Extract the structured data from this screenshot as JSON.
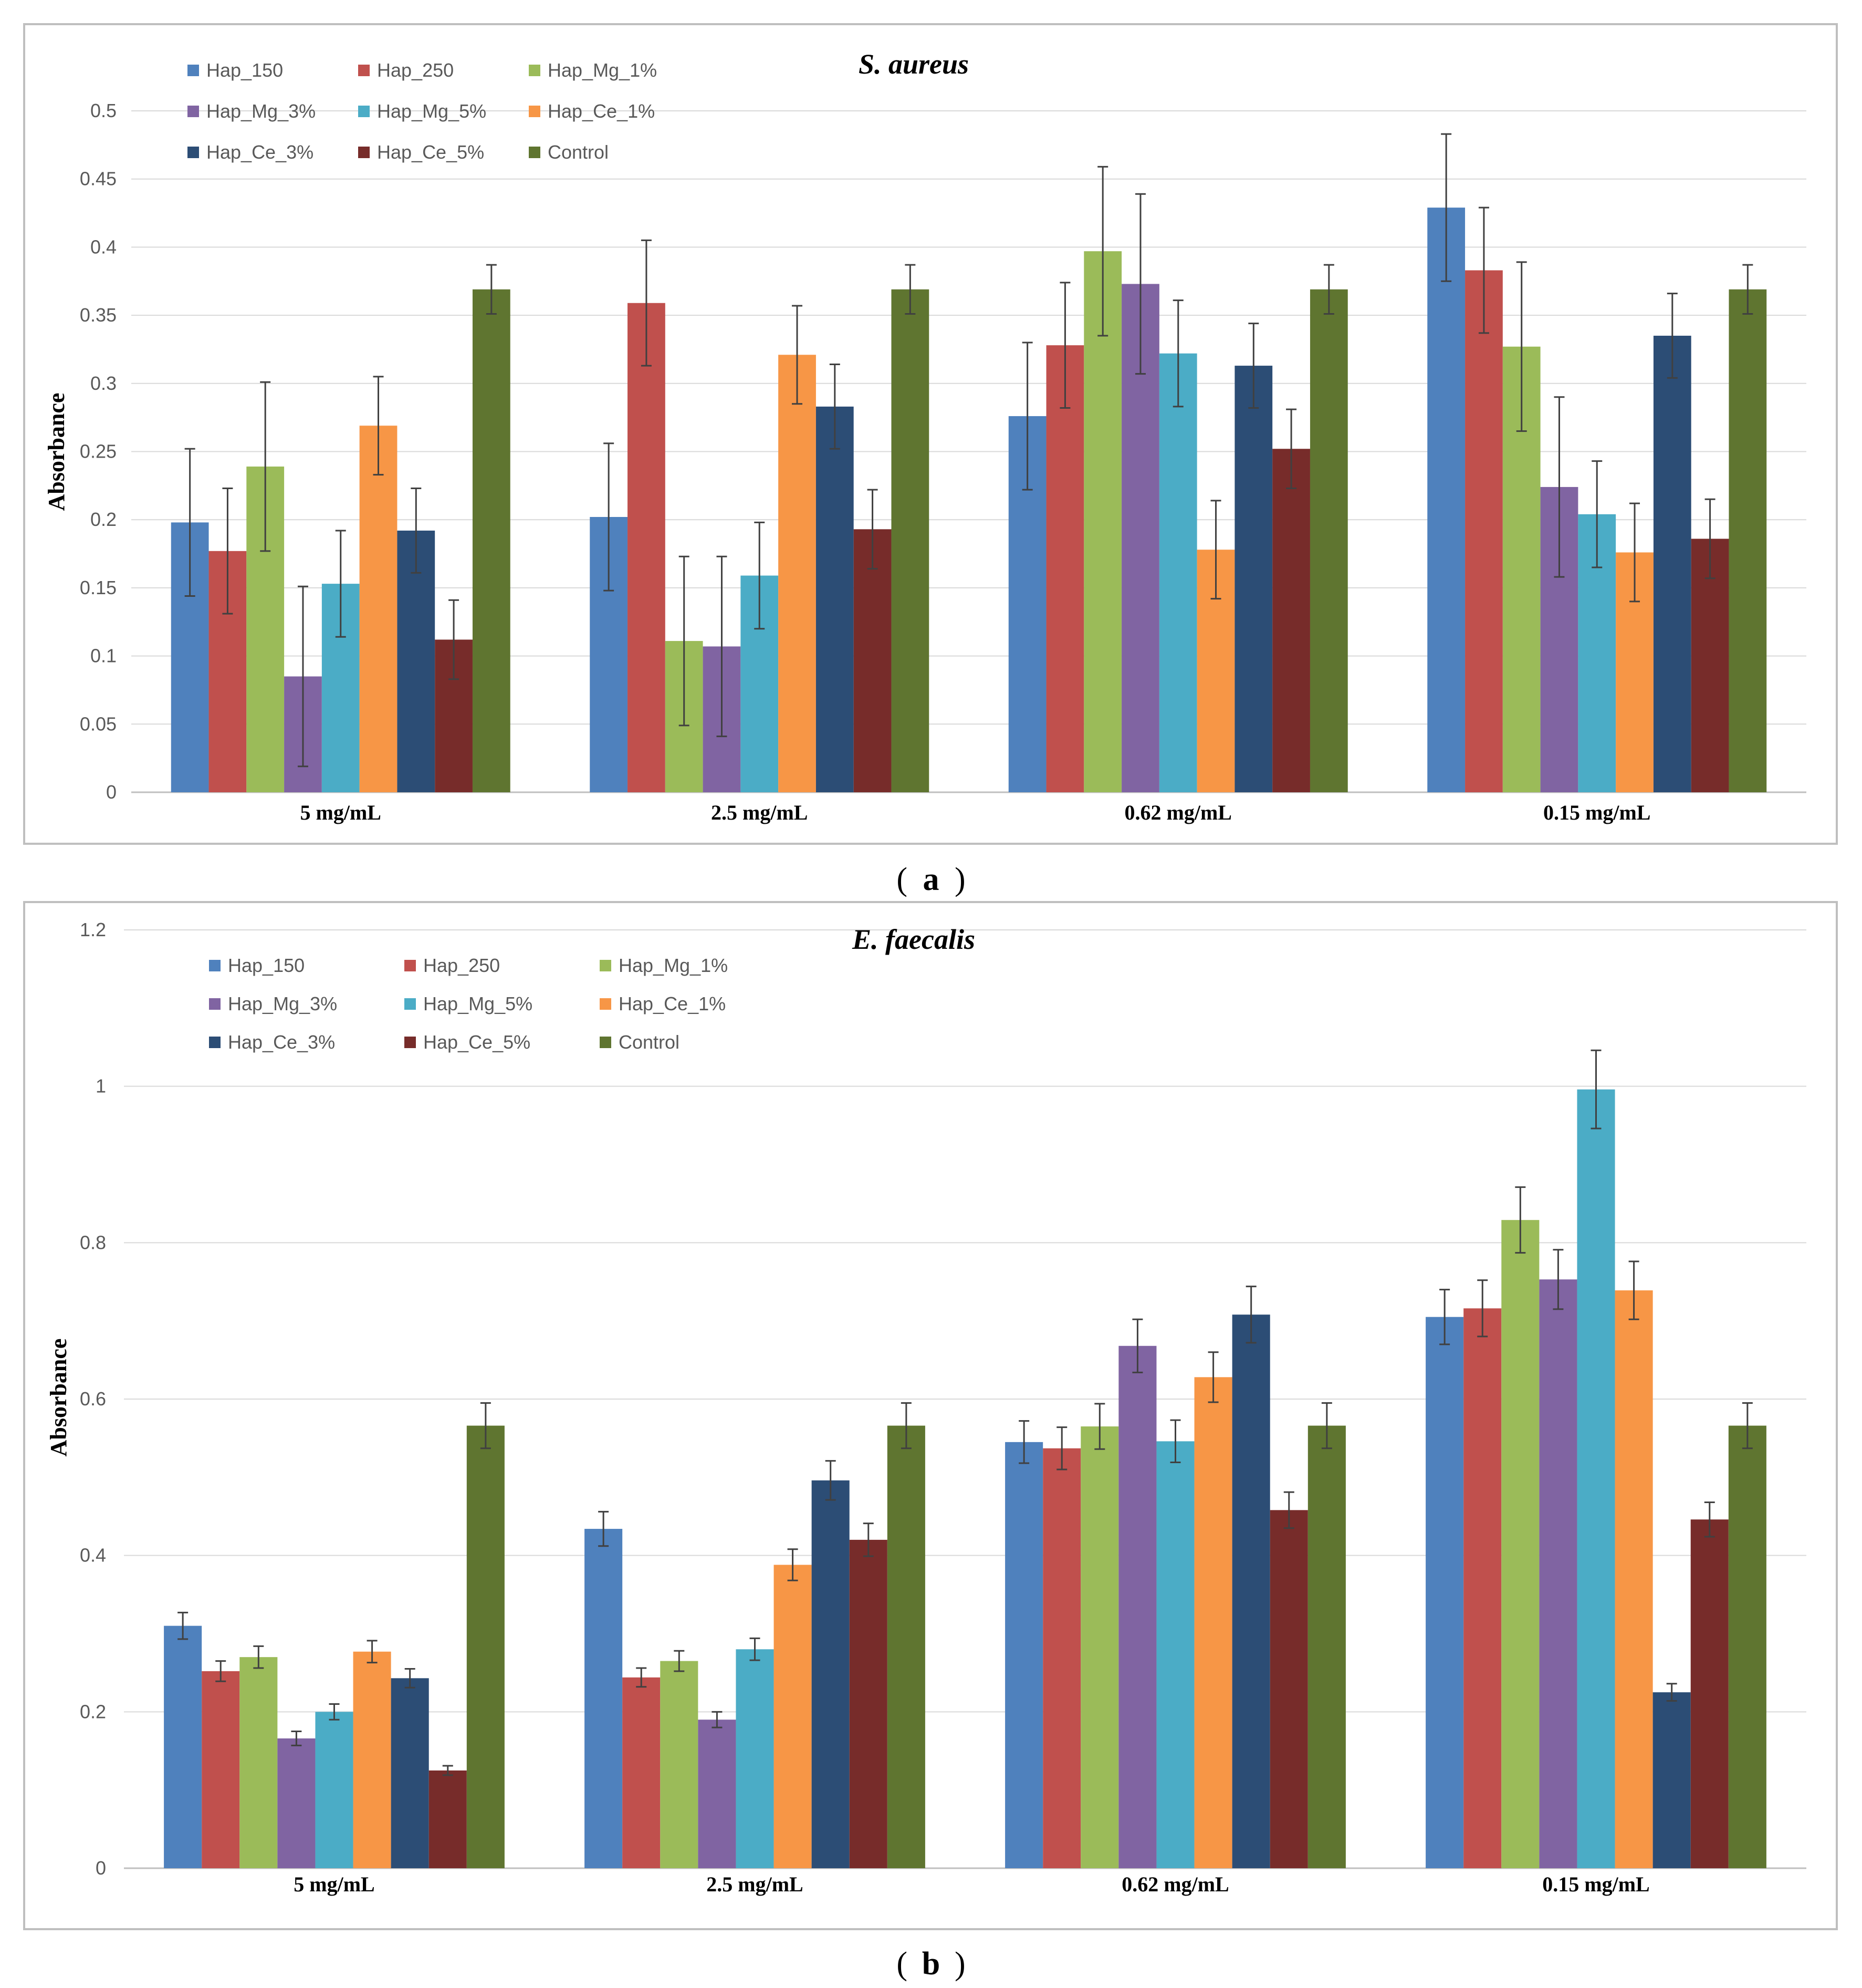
{
  "colors": {
    "Hap_150": "#4F81BD",
    "Hap_250": "#C0504D",
    "Hap_Mg_1%": "#9BBB59",
    "Hap_Mg_3%": "#8064A2",
    "Hap_Mg_5%": "#4BACC6",
    "Hap_Ce_1%": "#F79646",
    "Hap_Ce_3%": "#2C4D75",
    "Hap_Ce_5%": "#772C2A",
    "Control": "#5F7530",
    "grid": "#D9D9D9",
    "frame": "#BFBFBF",
    "error_bar": "#404040"
  },
  "chart_data": [
    {
      "type": "bar",
      "panel_label": "(a)",
      "caption_letter": "a",
      "title": "S. aureus",
      "xlabel": "",
      "ylabel": "Absorbance",
      "ylim": [
        0,
        0.5
      ],
      "yticks": [
        0,
        0.05,
        0.1,
        0.15,
        0.2,
        0.25,
        0.3,
        0.35,
        0.4,
        0.45,
        0.5
      ],
      "ytick_labels": [
        "0",
        "0.05",
        "0.1",
        "0.15",
        "0.2",
        "0.25",
        "0.3",
        "0.35",
        "0.4",
        "0.45",
        "0.5"
      ],
      "grid": true,
      "legend_position": "top-left",
      "categories": [
        "5 mg/mL",
        "2.5 mg/mL",
        "0.62 mg/mL",
        "0.15 mg/mL"
      ],
      "series": [
        {
          "name": "Hap_150",
          "values": [
            0.198,
            0.202,
            0.276,
            0.429
          ],
          "errors": [
            0.054,
            0.054,
            0.054,
            0.054
          ]
        },
        {
          "name": "Hap_250",
          "values": [
            0.177,
            0.359,
            0.328,
            0.383
          ],
          "errors": [
            0.046,
            0.046,
            0.046,
            0.046
          ]
        },
        {
          "name": "Hap_Mg_1%",
          "values": [
            0.239,
            0.111,
            0.397,
            0.327
          ],
          "errors": [
            0.062,
            0.062,
            0.062,
            0.062
          ]
        },
        {
          "name": "Hap_Mg_3%",
          "values": [
            0.085,
            0.107,
            0.373,
            0.224
          ],
          "errors": [
            0.066,
            0.066,
            0.066,
            0.066
          ]
        },
        {
          "name": "Hap_Mg_5%",
          "values": [
            0.153,
            0.159,
            0.322,
            0.204
          ],
          "errors": [
            0.039,
            0.039,
            0.039,
            0.039
          ]
        },
        {
          "name": "Hap_Ce_1%",
          "values": [
            0.269,
            0.321,
            0.178,
            0.176
          ],
          "errors": [
            0.036,
            0.036,
            0.036,
            0.036
          ]
        },
        {
          "name": "Hap_Ce_3%",
          "values": [
            0.192,
            0.283,
            0.313,
            0.335
          ],
          "errors": [
            0.031,
            0.031,
            0.031,
            0.031
          ]
        },
        {
          "name": "Hap_Ce_5%",
          "values": [
            0.112,
            0.193,
            0.252,
            0.186
          ],
          "errors": [
            0.029,
            0.029,
            0.029,
            0.029
          ]
        },
        {
          "name": "Control",
          "values": [
            0.369,
            0.369,
            0.369,
            0.369
          ],
          "errors": [
            0.018,
            0.018,
            0.018,
            0.018
          ]
        }
      ]
    },
    {
      "type": "bar",
      "panel_label": "(b)",
      "caption_letter": "b",
      "title": "E. faecalis",
      "xlabel": "",
      "ylabel": "Absorbance",
      "ylim": [
        0,
        1.2
      ],
      "yticks": [
        0,
        0.2,
        0.4,
        0.6,
        0.8,
        1,
        1.2
      ],
      "ytick_labels": [
        "0",
        "0.2",
        "0.4",
        "0.6",
        "0.8",
        "1",
        "1.2"
      ],
      "grid": true,
      "legend_position": "top-left",
      "categories": [
        "5 mg/mL",
        "2.5 mg/mL",
        "0.62 mg/mL",
        "0.15 mg/mL"
      ],
      "series": [
        {
          "name": "Hap_150",
          "values": [
            0.31,
            0.434,
            0.545,
            0.705
          ],
          "errors": [
            0.017,
            0.022,
            0.027,
            0.035
          ]
        },
        {
          "name": "Hap_250",
          "values": [
            0.252,
            0.244,
            0.537,
            0.716
          ],
          "errors": [
            0.013,
            0.012,
            0.027,
            0.036
          ]
        },
        {
          "name": "Hap_Mg_1%",
          "values": [
            0.27,
            0.265,
            0.565,
            0.829
          ],
          "errors": [
            0.014,
            0.013,
            0.029,
            0.042
          ]
        },
        {
          "name": "Hap_Mg_3%",
          "values": [
            0.166,
            0.19,
            0.668,
            0.753
          ],
          "errors": [
            0.009,
            0.01,
            0.034,
            0.038
          ]
        },
        {
          "name": "Hap_Mg_5%",
          "values": [
            0.2,
            0.28,
            0.546,
            0.996
          ],
          "errors": [
            0.01,
            0.014,
            0.027,
            0.05
          ]
        },
        {
          "name": "Hap_Ce_1%",
          "values": [
            0.277,
            0.388,
            0.628,
            0.739
          ],
          "errors": [
            0.014,
            0.02,
            0.032,
            0.037
          ]
        },
        {
          "name": "Hap_Ce_3%",
          "values": [
            0.243,
            0.496,
            0.708,
            0.225
          ],
          "errors": [
            0.012,
            0.025,
            0.036,
            0.011
          ]
        },
        {
          "name": "Hap_Ce_5%",
          "values": [
            0.125,
            0.42,
            0.458,
            0.446
          ],
          "errors": [
            0.006,
            0.021,
            0.023,
            0.022
          ]
        },
        {
          "name": "Control",
          "values": [
            0.566,
            0.566,
            0.566,
            0.566
          ],
          "errors": [
            0.029,
            0.029,
            0.029,
            0.029
          ]
        }
      ]
    }
  ]
}
